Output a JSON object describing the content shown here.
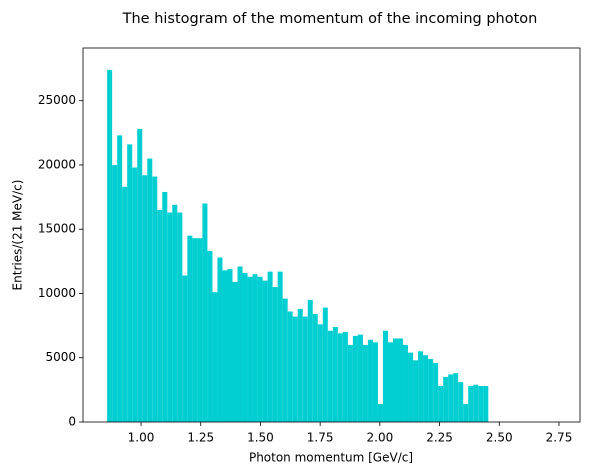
{
  "chart_data": {
    "type": "histogram",
    "title": "The histogram of the momentum of the incoming photon",
    "xlabel": "Photon momentum [GeV/c]",
    "ylabel": "Entries/(21 MeV/c)",
    "color": "#00ced1",
    "bins": [
      0.858,
      0.879,
      0.9,
      0.921,
      0.942,
      0.963,
      0.984,
      1.005,
      1.026,
      1.047,
      1.068,
      1.089,
      1.11,
      1.131,
      1.152,
      1.173,
      1.194,
      1.215,
      1.236,
      1.257,
      1.278,
      1.299,
      1.32,
      1.341,
      1.362,
      1.383,
      1.404,
      1.425,
      1.446,
      1.467,
      1.488,
      1.509,
      1.53,
      1.551,
      1.572,
      1.593,
      1.614,
      1.635,
      1.656,
      1.677,
      1.698,
      1.719,
      1.74,
      1.761,
      1.782,
      1.803,
      1.824,
      1.845,
      1.866,
      1.887,
      1.908,
      1.929,
      1.95,
      1.971,
      1.992,
      2.013,
      2.034,
      2.055,
      2.076,
      2.097,
      2.118,
      2.139,
      2.16,
      2.181,
      2.202,
      2.223,
      2.244,
      2.265,
      2.286,
      2.307,
      2.328,
      2.349,
      2.37,
      2.391,
      2.412,
      2.433,
      2.454
    ],
    "values": [
      27400,
      20000,
      22300,
      18300,
      21600,
      19800,
      22800,
      19200,
      20500,
      19100,
      16500,
      17900,
      16300,
      16900,
      16300,
      11400,
      14500,
      14300,
      14300,
      17000,
      13300,
      10100,
      12800,
      11800,
      11900,
      10900,
      12100,
      11600,
      11300,
      11500,
      11300,
      11000,
      11700,
      10500,
      11700,
      9600,
      8600,
      8200,
      8800,
      8200,
      9500,
      8400,
      7600,
      8900,
      7100,
      7400,
      6900,
      7000,
      6000,
      6700,
      6800,
      6000,
      6400,
      6200,
      1400,
      7100,
      6200,
      6500,
      6500,
      6000,
      5400,
      4800,
      5500,
      5200,
      4900,
      4600,
      2800,
      3500,
      3700,
      3800,
      3100,
      1400,
      2800,
      2900,
      2800,
      2800
    ],
    "xlim": [
      0.757,
      2.838
    ],
    "ylim": [
      0,
      29100
    ],
    "xticks": [
      {
        "value": 1,
        "label": "1.00"
      },
      {
        "value": 1.25,
        "label": "1.25"
      },
      {
        "value": 1.5,
        "label": "1.50"
      },
      {
        "value": 1.75,
        "label": "1.75"
      },
      {
        "value": 2,
        "label": "2.00"
      },
      {
        "value": 2.25,
        "label": "2.25"
      },
      {
        "value": 2.5,
        "label": "2.50"
      },
      {
        "value": 2.75,
        "label": "2.75"
      }
    ],
    "yticks": [
      0,
      5000,
      10000,
      15000,
      20000,
      25000
    ]
  }
}
